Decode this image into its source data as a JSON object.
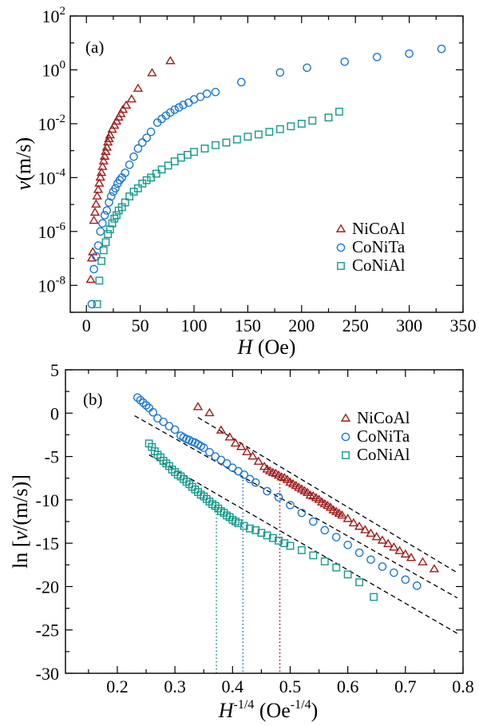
{
  "colors": {
    "NiCoAl": "#a01c1c",
    "CoNiTa": "#1a78d2",
    "CoNiAl": "#149a8a",
    "fit_line": "#000000"
  },
  "chart_data": [
    {
      "panel": "(a)",
      "type": "scatter",
      "xlabel_main": "H",
      "xlabel_unit": " (Oe)",
      "ylabel_main": "v",
      "ylabel_unit": "(m/s)",
      "xlim": [
        -15,
        350
      ],
      "ylim_log10": [
        -9,
        2
      ],
      "yscale": "log",
      "xticks": [
        0,
        50,
        100,
        150,
        200,
        250,
        300,
        350
      ],
      "xtick_labels": [
        "0",
        "50",
        "100",
        "150",
        "200",
        "250",
        "300",
        "350"
      ],
      "yticks_log10": [
        -8,
        -6,
        -4,
        -2,
        0,
        2
      ],
      "ytick_labels": [
        {
          "base": "10",
          "exp": "-8"
        },
        {
          "base": "10",
          "exp": "-6"
        },
        {
          "base": "10",
          "exp": "-4"
        },
        {
          "base": "10",
          "exp": "-2"
        },
        {
          "base": "10",
          "exp": "0"
        },
        {
          "base": "10",
          "exp": "2"
        }
      ],
      "legend_position": "lower-right",
      "grid": false,
      "series": [
        {
          "name": "NiCoAl",
          "marker": "triangle",
          "x": [
            4,
            5,
            6,
            7,
            8,
            9,
            10,
            11,
            12,
            13,
            14,
            15,
            16,
            17,
            18,
            19,
            20,
            21,
            22,
            24,
            26,
            28,
            30,
            32,
            34,
            37,
            42,
            48,
            61,
            78
          ],
          "y": [
            1.6e-08,
            1e-07,
            1.7e-07,
            2.5e-06,
            5e-06,
            1e-05,
            2e-05,
            3.5e-05,
            6e-05,
            0.0001,
            0.00015,
            0.00025,
            0.0004,
            0.0006,
            0.0009,
            0.0013,
            0.002,
            0.0027,
            0.0037,
            0.006,
            0.0085,
            0.012,
            0.017,
            0.023,
            0.033,
            0.047,
            0.08,
            0.2,
            0.75,
            2.1
          ]
        },
        {
          "name": "CoNiTa",
          "marker": "circle",
          "x": [
            5,
            7,
            9,
            11,
            13,
            15,
            17,
            19,
            21,
            23,
            25,
            27,
            29,
            31,
            33,
            36,
            40,
            44,
            48,
            52,
            56,
            60,
            66,
            70,
            74,
            78,
            82,
            86,
            90,
            95,
            100,
            106,
            112,
            120,
            144,
            180,
            205,
            240,
            270,
            300,
            330
          ],
          "y": [
            2e-09,
            4e-08,
            1.2e-07,
            3e-07,
            1e-06,
            2e-06,
            4e-06,
            6e-06,
            1.2e-05,
            2e-05,
            3e-05,
            4e-05,
            6e-05,
            8e-05,
            0.0001,
            0.00015,
            0.0003,
            0.0006,
            0.0012,
            0.002,
            0.003,
            0.005,
            0.011,
            0.015,
            0.02,
            0.026,
            0.033,
            0.04,
            0.05,
            0.06,
            0.08,
            0.1,
            0.13,
            0.15,
            0.35,
            0.8,
            1.2,
            2,
            3,
            4,
            6
          ]
        },
        {
          "name": "CoNiAl",
          "marker": "square",
          "x": [
            10,
            12,
            14,
            16,
            18,
            20,
            22,
            24,
            26,
            28,
            30,
            33,
            36,
            40,
            44,
            48,
            52,
            56,
            60,
            65,
            70,
            76,
            82,
            88,
            94,
            100,
            110,
            120,
            130,
            140,
            150,
            160,
            170,
            180,
            190,
            200,
            210,
            225,
            235
          ],
          "y": [
            2e-09,
            1.5e-08,
            8e-08,
            2e-07,
            4e-07,
            8e-07,
            1.2e-06,
            2e-06,
            3e-06,
            4e-06,
            6e-06,
            8e-06,
            1.2e-05,
            2e-05,
            3e-05,
            4e-05,
            6e-05,
            8e-05,
            0.0001,
            0.00014,
            0.0002,
            0.00028,
            0.0004,
            0.00055,
            0.0007,
            0.0009,
            0.0012,
            0.0016,
            0.002,
            0.0026,
            0.0033,
            0.004,
            0.005,
            0.0063,
            0.008,
            0.01,
            0.013,
            0.017,
            0.028
          ]
        }
      ]
    },
    {
      "panel": "(b)",
      "type": "scatter",
      "xlabel_main": "H",
      "xlabel_sup1": "-1/4",
      "xlabel_unit": " (Oe",
      "xlabel_sup2": "-1/4",
      "xlabel_close": ")",
      "ylabel": "ln [v/(m/s)]",
      "ylabel_pre": "ln [",
      "ylabel_var": "v",
      "ylabel_post": "/(m/s)]",
      "xlim": [
        0.11,
        0.8
      ],
      "ylim": [
        -30,
        5
      ],
      "xticks": [
        0.2,
        0.3,
        0.4,
        0.5,
        0.6,
        0.7,
        0.8
      ],
      "xtick_labels": [
        "0.2",
        "0.3",
        "0.4",
        "0.5",
        "0.6",
        "0.7",
        "0.8"
      ],
      "yticks": [
        -30,
        -25,
        -20,
        -15,
        -10,
        -5,
        0,
        5
      ],
      "ytick_labels": [
        "-30",
        "-25",
        "-20",
        "-15",
        "-10",
        "-5",
        "0",
        "5"
      ],
      "legend_position": "top-right",
      "grid": false,
      "series": [
        {
          "name": "NiCoAl",
          "marker": "triangle",
          "x": [
            0.34,
            0.36,
            0.38,
            0.395,
            0.405,
            0.415,
            0.425,
            0.435,
            0.445,
            0.455,
            0.46,
            0.465,
            0.47,
            0.475,
            0.48,
            0.485,
            0.49,
            0.495,
            0.5,
            0.505,
            0.51,
            0.515,
            0.52,
            0.525,
            0.53,
            0.535,
            0.54,
            0.545,
            0.55,
            0.555,
            0.56,
            0.565,
            0.57,
            0.575,
            0.58,
            0.585,
            0.59,
            0.6,
            0.61,
            0.62,
            0.63,
            0.64,
            0.65,
            0.66,
            0.67,
            0.68,
            0.69,
            0.7,
            0.71,
            0.73,
            0.75
          ],
          "y": [
            0.7,
            0.0,
            -2.0,
            -2.8,
            -3.5,
            -3.9,
            -4.5,
            -5.0,
            -5.6,
            -6.2,
            -6.5,
            -6.7,
            -6.9,
            -7.0,
            -7.2,
            -7.4,
            -7.5,
            -7.7,
            -8.0,
            -8.2,
            -8.4,
            -8.6,
            -8.8,
            -9.0,
            -9.2,
            -9.5,
            -9.6,
            -9.8,
            -10.0,
            -10.3,
            -10.5,
            -10.7,
            -10.9,
            -11.2,
            -11.4,
            -11.6,
            -11.8,
            -12.2,
            -12.7,
            -13.1,
            -13.5,
            -13.9,
            -14.3,
            -14.7,
            -15.1,
            -15.5,
            -15.9,
            -16.3,
            -16.7,
            -17.2,
            -18.0
          ]
        },
        {
          "name": "CoNiTa",
          "marker": "circle",
          "x": [
            0.235,
            0.24,
            0.245,
            0.25,
            0.255,
            0.262,
            0.27,
            0.28,
            0.29,
            0.3,
            0.31,
            0.315,
            0.32,
            0.325,
            0.33,
            0.335,
            0.34,
            0.345,
            0.35,
            0.36,
            0.37,
            0.38,
            0.39,
            0.4,
            0.41,
            0.42,
            0.43,
            0.44,
            0.46,
            0.48,
            0.5,
            0.52,
            0.54,
            0.56,
            0.58,
            0.6,
            0.62,
            0.64,
            0.66,
            0.68,
            0.7,
            0.72
          ],
          "y": [
            1.8,
            1.5,
            1.2,
            0.9,
            0.6,
            0.1,
            -0.6,
            -1.0,
            -1.5,
            -1.9,
            -2.6,
            -2.8,
            -3.0,
            -3.1,
            -3.3,
            -3.4,
            -3.6,
            -3.8,
            -4.0,
            -4.5,
            -5.0,
            -5.4,
            -5.8,
            -6.3,
            -6.7,
            -7.1,
            -7.6,
            -8.0,
            -9.0,
            -9.7,
            -10.6,
            -11.5,
            -12.5,
            -13.5,
            -14.3,
            -15.2,
            -16.1,
            -16.9,
            -17.7,
            -18.4,
            -19.2,
            -19.9
          ]
        },
        {
          "name": "CoNiAl",
          "marker": "square",
          "x": [
            0.255,
            0.26,
            0.265,
            0.27,
            0.275,
            0.28,
            0.285,
            0.29,
            0.295,
            0.3,
            0.305,
            0.31,
            0.315,
            0.32,
            0.325,
            0.33,
            0.335,
            0.34,
            0.345,
            0.35,
            0.355,
            0.36,
            0.365,
            0.37,
            0.375,
            0.38,
            0.385,
            0.39,
            0.395,
            0.4,
            0.405,
            0.41,
            0.42,
            0.43,
            0.44,
            0.45,
            0.46,
            0.47,
            0.48,
            0.49,
            0.5,
            0.52,
            0.54,
            0.56,
            0.58,
            0.6,
            0.62,
            0.645
          ],
          "y": [
            -3.5,
            -3.9,
            -4.4,
            -4.8,
            -5.1,
            -5.5,
            -5.8,
            -6.1,
            -6.5,
            -6.8,
            -7.1,
            -7.3,
            -7.6,
            -7.9,
            -8.2,
            -8.5,
            -8.8,
            -9.1,
            -9.4,
            -9.6,
            -9.9,
            -10.2,
            -10.5,
            -10.7,
            -11.0,
            -11.3,
            -11.5,
            -11.8,
            -12.0,
            -12.3,
            -12.5,
            -12.7,
            -13.0,
            -13.3,
            -13.5,
            -13.8,
            -14.1,
            -14.4,
            -14.7,
            -15.0,
            -15.3,
            -15.8,
            -16.4,
            -17.1,
            -17.8,
            -18.6,
            -19.5,
            -21.2
          ]
        }
      ],
      "fit_lines": [
        {
          "series": "NiCoAl",
          "x": [
            0.34,
            0.79
          ],
          "y": [
            -0.5,
            -18.4
          ]
        },
        {
          "series": "CoNiTa",
          "x": [
            0.23,
            0.79
          ],
          "y": [
            -0.3,
            -21.3
          ]
        },
        {
          "series": "CoNiAl",
          "x": [
            0.255,
            0.79
          ],
          "y": [
            -4.8,
            -25.4
          ]
        }
      ],
      "guide_lines": [
        {
          "series": "CoNiAl",
          "x": 0.372,
          "y_top": -10.8
        },
        {
          "series": "CoNiTa",
          "x": 0.418,
          "y_top": -7.3
        },
        {
          "series": "NiCoAl",
          "x": 0.482,
          "y_top": -7.3
        }
      ]
    }
  ]
}
